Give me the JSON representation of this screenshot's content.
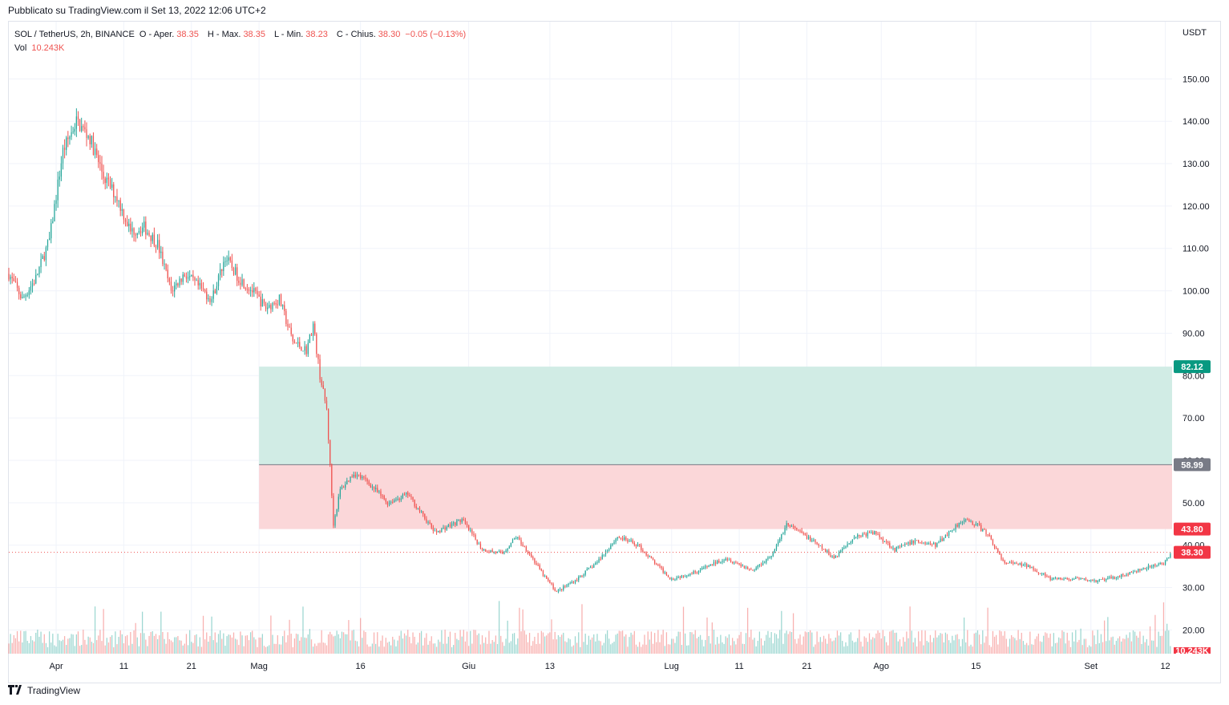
{
  "caption": "Pubblicato su TradingView.com il Set 13, 2022 12:06 UTC+2",
  "legend": {
    "symbol": "SOL / TetherUS, 2h, BINANCE",
    "open_label": "O - Aper.",
    "open": "38.35",
    "high_label": "H - Max.",
    "high": "38.35",
    "low_label": "L - Min.",
    "low": "38.23",
    "close_label": "C - Chius.",
    "close": "38.30",
    "change": "−0.05 (−0.13%)",
    "vol_label": "Vol",
    "vol": "10.243K"
  },
  "footer": {
    "logo_icon": "tradingview-logo-icon",
    "brand": "TradingView"
  },
  "colors": {
    "up": "#26a69a",
    "down": "#ef5350",
    "profit_zone": "#d1ece5",
    "loss_zone": "#fbd7d9",
    "grid": "#f0f3fa"
  },
  "chart_data": {
    "type": "candlestick",
    "title": "SOL / TetherUS, 2h, BINANCE",
    "currency": "USDT",
    "y_ticks": [
      "150.00",
      "140.00",
      "130.00",
      "120.00",
      "110.00",
      "100.00",
      "90.00",
      "80.00",
      "70.00",
      "60.00",
      "50.00",
      "40.00",
      "30.00",
      "20.00"
    ],
    "y_values": [
      150,
      140,
      130,
      120,
      110,
      100,
      90,
      80,
      70,
      60,
      50,
      40,
      30,
      20
    ],
    "ylim": [
      14.4,
      163.5
    ],
    "x_labels": [
      "Apr",
      "11",
      "21",
      "Mag",
      "16",
      "Giu",
      "13",
      "Lug",
      "11",
      "21",
      "Ago",
      "15",
      "Set",
      "12"
    ],
    "x_dates": [
      "2022-04-01",
      "2022-04-11",
      "2022-04-21",
      "2022-05-01",
      "2022-05-16",
      "2022-06-01",
      "2022-06-13",
      "2022-07-01",
      "2022-07-11",
      "2022-07-21",
      "2022-08-01",
      "2022-08-15",
      "2022-09-01",
      "2022-09-12"
    ],
    "x_range": [
      "2022-03-25",
      "2022-09-13"
    ],
    "price_path": [
      [
        "2022-03-25",
        104
      ],
      [
        "2022-03-27",
        98
      ],
      [
        "2022-03-29",
        103
      ],
      [
        "2022-03-31",
        112
      ],
      [
        "2022-04-02",
        133
      ],
      [
        "2022-04-04",
        140
      ],
      [
        "2022-04-06",
        136
      ],
      [
        "2022-04-08",
        127
      ],
      [
        "2022-04-10",
        122
      ],
      [
        "2022-04-12",
        114
      ],
      [
        "2022-04-14",
        115
      ],
      [
        "2022-04-16",
        111
      ],
      [
        "2022-04-18",
        100
      ],
      [
        "2022-04-20",
        104
      ],
      [
        "2022-04-22",
        101
      ],
      [
        "2022-04-24",
        98
      ],
      [
        "2022-04-26",
        108
      ],
      [
        "2022-04-28",
        103
      ],
      [
        "2022-04-30",
        100
      ],
      [
        "2022-05-02",
        96
      ],
      [
        "2022-05-04",
        98
      ],
      [
        "2022-05-06",
        88
      ],
      [
        "2022-05-08",
        86
      ],
      [
        "2022-05-09",
        92
      ],
      [
        "2022-05-10",
        80
      ],
      [
        "2022-05-11",
        72
      ],
      [
        "2022-05-12",
        45
      ],
      [
        "2022-05-13",
        53
      ],
      [
        "2022-05-15",
        57
      ],
      [
        "2022-05-17",
        55
      ],
      [
        "2022-05-20",
        50
      ],
      [
        "2022-05-23",
        52
      ],
      [
        "2022-05-27",
        43
      ],
      [
        "2022-05-31",
        46
      ],
      [
        "2022-06-03",
        39
      ],
      [
        "2022-06-06",
        38
      ],
      [
        "2022-06-08",
        42
      ],
      [
        "2022-06-10",
        38
      ],
      [
        "2022-06-12",
        33
      ],
      [
        "2022-06-14",
        29
      ],
      [
        "2022-06-17",
        32
      ],
      [
        "2022-06-20",
        36
      ],
      [
        "2022-06-23",
        42
      ],
      [
        "2022-06-26",
        40
      ],
      [
        "2022-06-29",
        35
      ],
      [
        "2022-07-01",
        32
      ],
      [
        "2022-07-05",
        34
      ],
      [
        "2022-07-09",
        37
      ],
      [
        "2022-07-13",
        34
      ],
      [
        "2022-07-16",
        38
      ],
      [
        "2022-07-18",
        45
      ],
      [
        "2022-07-21",
        42
      ],
      [
        "2022-07-25",
        37
      ],
      [
        "2022-07-28",
        42
      ],
      [
        "2022-07-31",
        43
      ],
      [
        "2022-08-03",
        39
      ],
      [
        "2022-08-06",
        41
      ],
      [
        "2022-08-09",
        40
      ],
      [
        "2022-08-13",
        46
      ],
      [
        "2022-08-15",
        45
      ],
      [
        "2022-08-17",
        42
      ],
      [
        "2022-08-19",
        36
      ],
      [
        "2022-08-23",
        35
      ],
      [
        "2022-08-26",
        32
      ],
      [
        "2022-08-30",
        32
      ],
      [
        "2022-09-02",
        31.5
      ],
      [
        "2022-09-06",
        33
      ],
      [
        "2022-09-08",
        34
      ],
      [
        "2022-09-12",
        36
      ],
      [
        "2022-09-13",
        38.3
      ]
    ],
    "position_tool": {
      "profit_target": "82.12",
      "entry": "58.99",
      "stop": "43.80",
      "start": "2022-05-01",
      "end": "2022-09-13"
    },
    "last_price": "38.30",
    "volume_label": "10.243K",
    "volume_scale_max": 100000
  }
}
